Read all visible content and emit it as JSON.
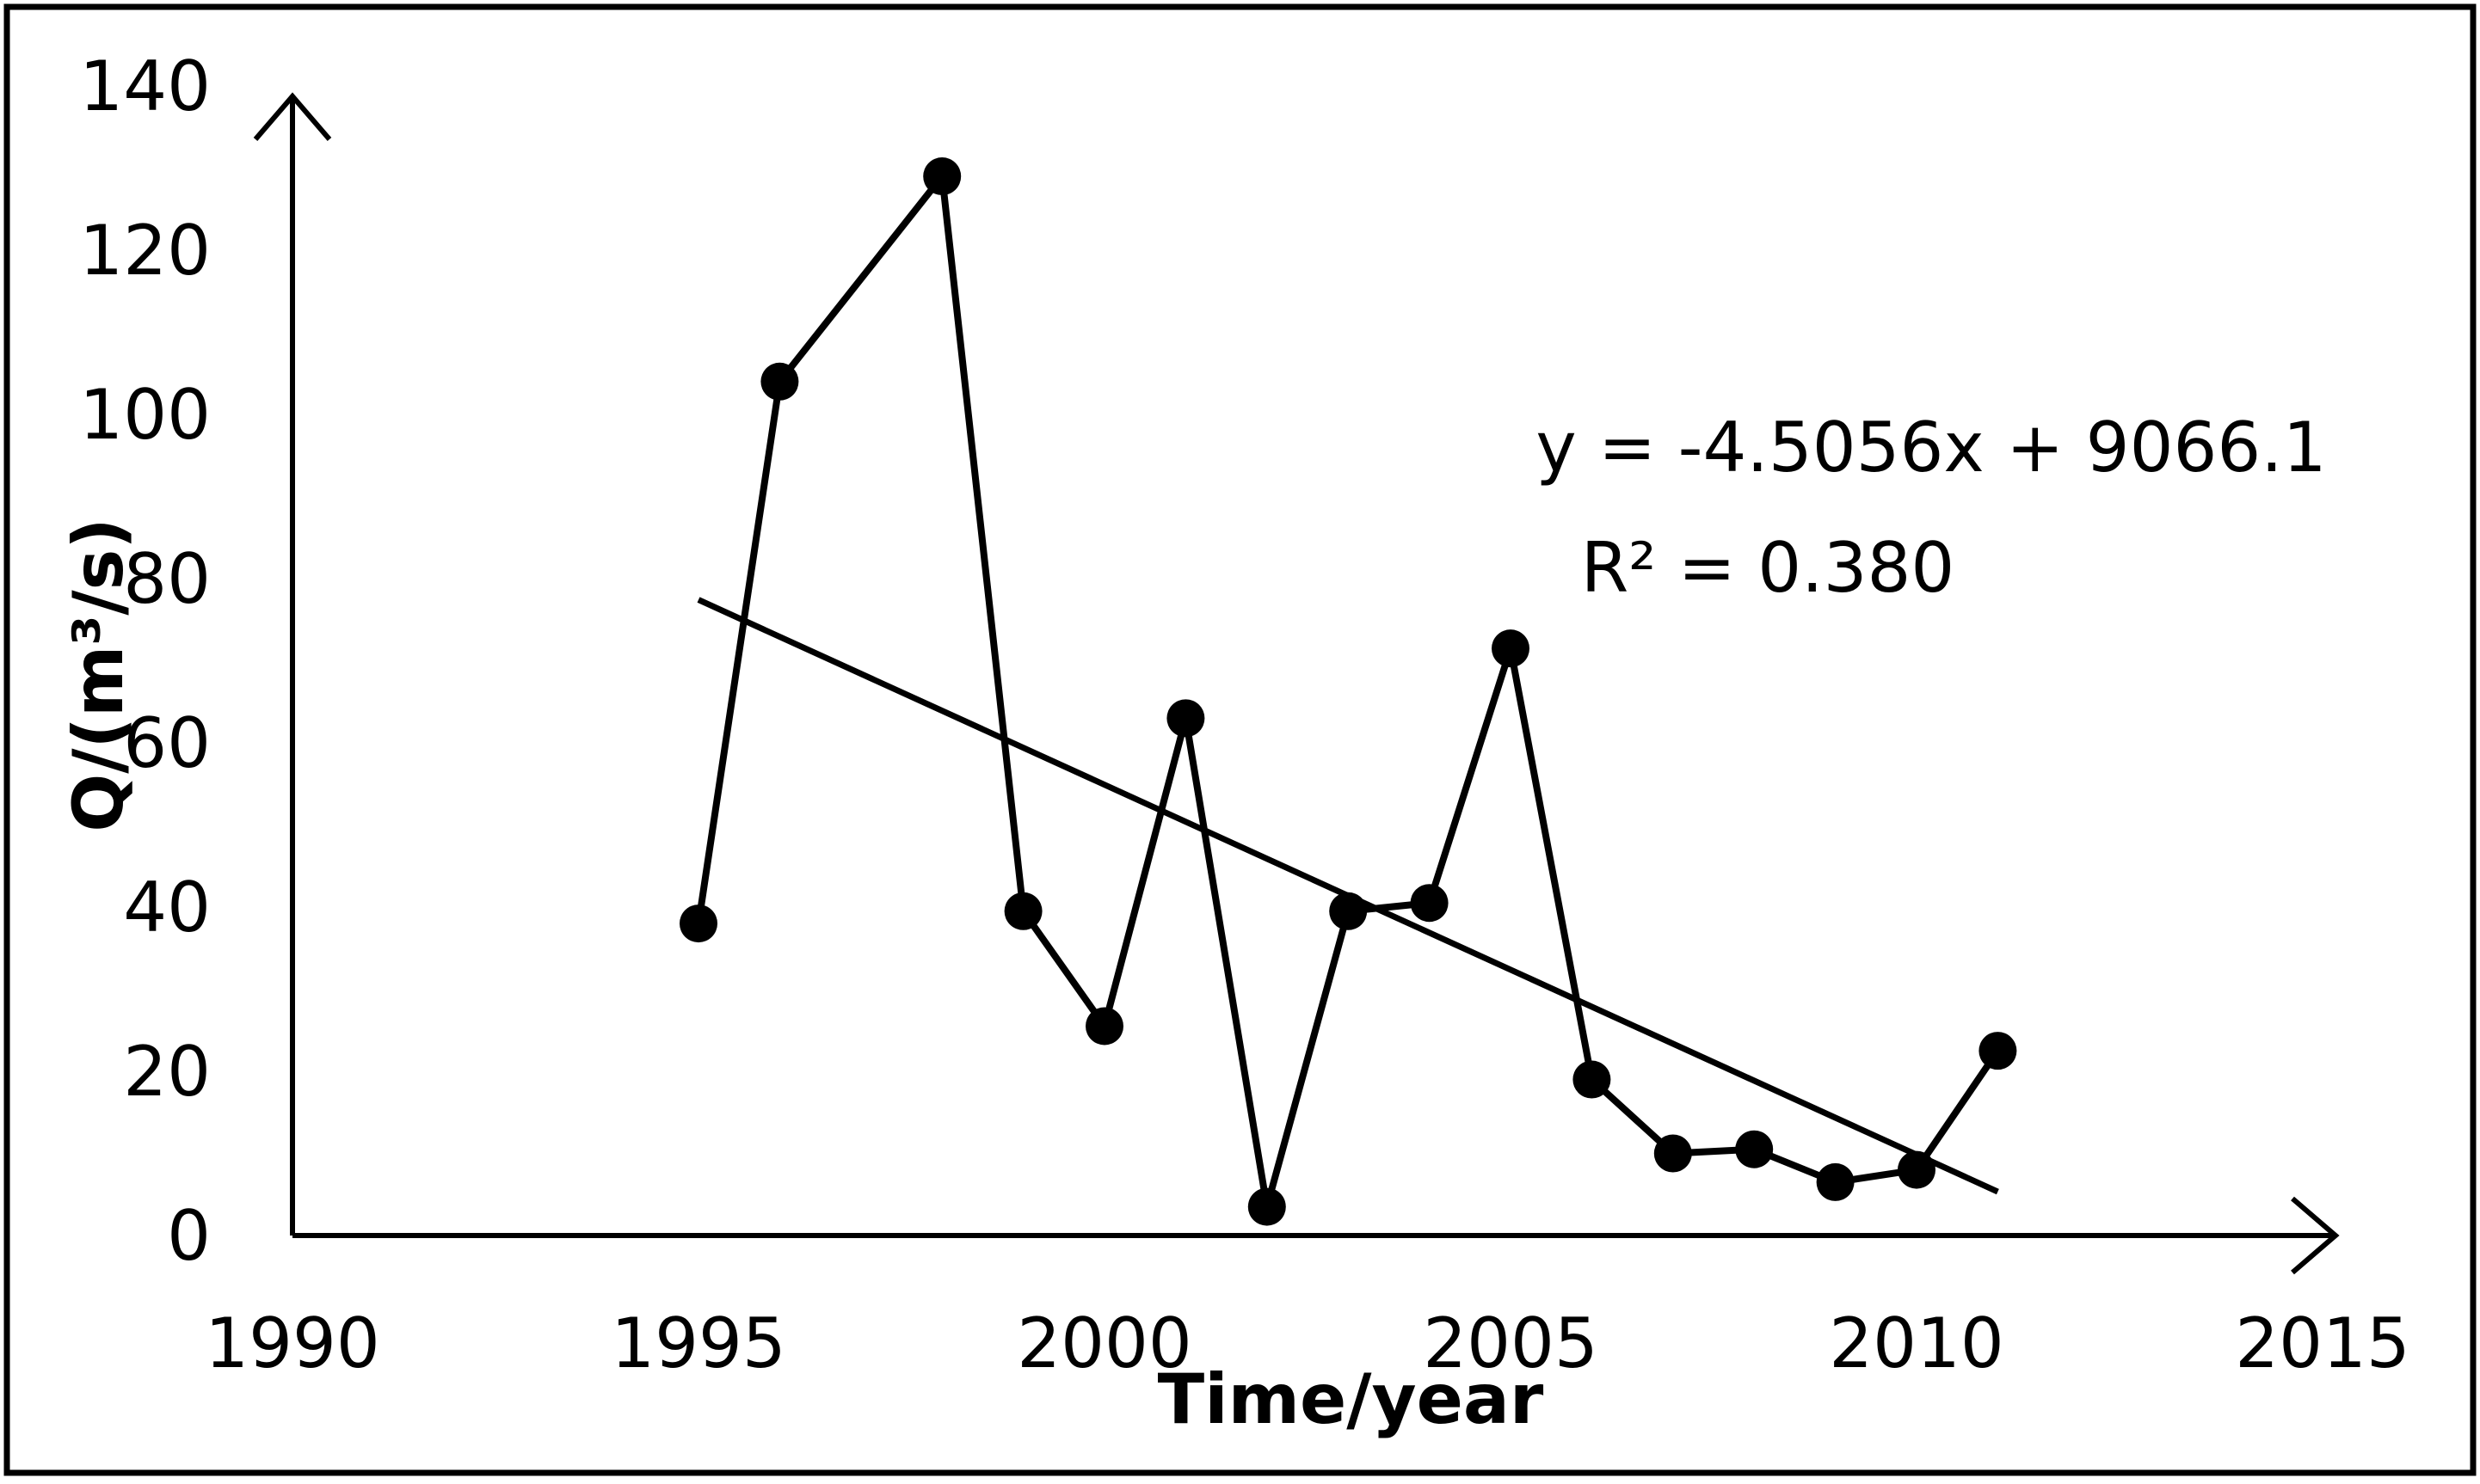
{
  "chart_data": {
    "type": "line",
    "xlabel": "Time/year",
    "ylabel": "Q/(m³/s)",
    "xlim": [
      1990,
      2015
    ],
    "ylim": [
      0,
      140
    ],
    "x_ticks": [
      "1990",
      "1995",
      "2000",
      "2005",
      "2010",
      "2015"
    ],
    "y_ticks": [
      "0",
      "20",
      "40",
      "60",
      "80",
      "100",
      "120",
      "140"
    ],
    "grid": false,
    "legend": "none",
    "series": [
      {
        "x": [
          1995,
          1996,
          1998,
          1999,
          2000,
          2001,
          2002,
          2003,
          2004,
          2005,
          2006,
          2007,
          2008,
          2009,
          2010,
          2011
        ],
        "y": [
          38,
          104,
          129,
          39.5,
          25.5,
          63,
          3.5,
          39.5,
          40.5,
          71.5,
          19,
          10,
          10.5,
          6.5,
          8,
          22.5
        ]
      }
    ],
    "trendline": {
      "slope": -4.5056,
      "intercept": 9066.1,
      "x_range": [
        1995,
        2011
      ]
    },
    "annotations": [
      "y = -4.5056x + 9066.1",
      "R² = 0.380"
    ],
    "colors": {
      "line": "#000000",
      "marker": "#000000",
      "border": "#000000"
    }
  }
}
